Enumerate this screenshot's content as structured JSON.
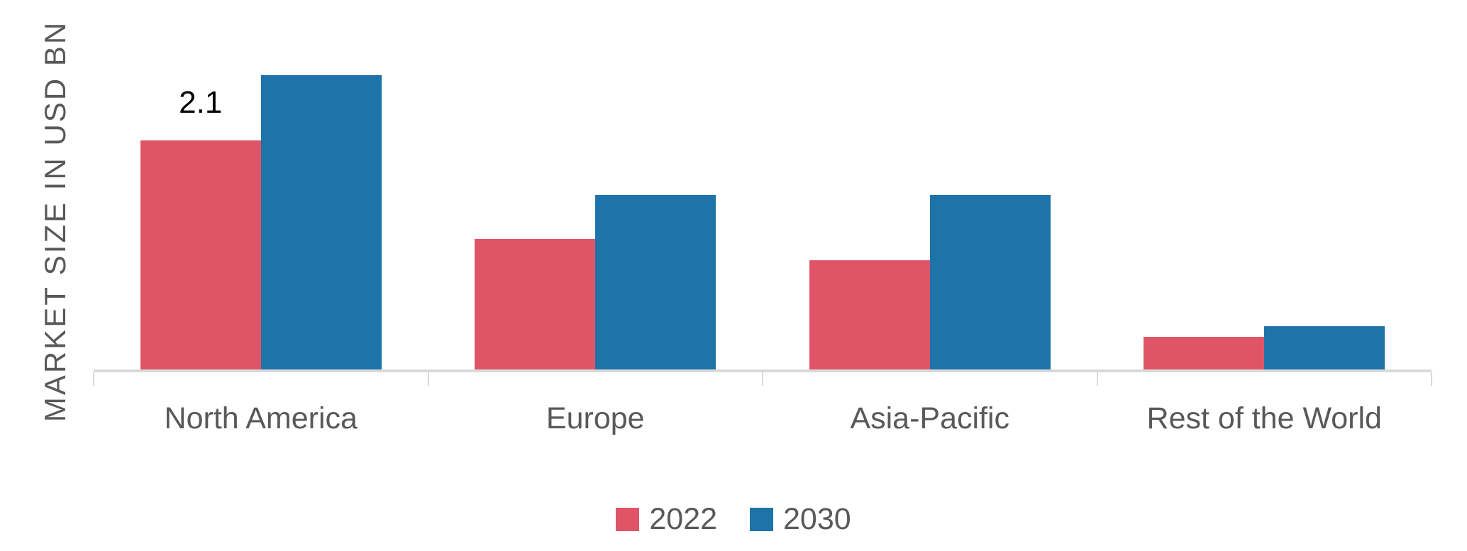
{
  "chart_data": {
    "type": "bar",
    "title": "",
    "ylabel": "MARKET SIZE IN USD BN",
    "xlabel": "",
    "categories": [
      "North America",
      "Europe",
      "Asia-Pacific",
      "Rest of the World"
    ],
    "series": [
      {
        "name": "2022",
        "color": "#df5567",
        "values": [
          2.1,
          1.2,
          1.0,
          0.3
        ]
      },
      {
        "name": "2030",
        "color": "#1e74a9",
        "values": [
          2.7,
          1.6,
          1.6,
          0.4
        ]
      }
    ],
    "data_labels": [
      {
        "series_index": 0,
        "category_index": 0,
        "text": "2.1"
      }
    ],
    "ylim": [
      0,
      3.39
    ],
    "grid": "off",
    "y_axis_ticks_visible": false,
    "legend_position": "bottom-center",
    "axis_color": "#d9d9d9",
    "label_color": "#595959",
    "data_label_color": "#000000"
  }
}
